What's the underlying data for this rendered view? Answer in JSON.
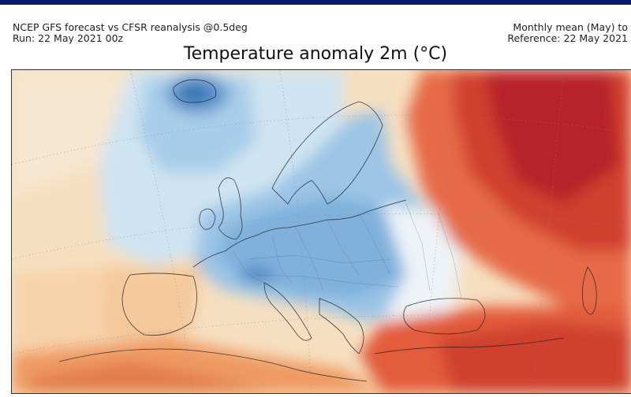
{
  "header": {
    "source_line": "NCEP GFS forecast vs CFSR reanalysis @0.5deg",
    "run_line": "Run: 22 May 2021 00z",
    "mean_line": "Monthly mean (May) to",
    "reference_line": "Reference: 22 May 2021"
  },
  "title": "Temperature anomaly 2m (°C)",
  "map": {
    "region": "Europe",
    "colors": {
      "deep_blue": "#2f6db0",
      "mid_blue": "#7fb1dc",
      "light_blue": "#bfdcef",
      "white": "#f4f7fa",
      "pale_orange": "#f7d9b4",
      "orange": "#f2a36d",
      "red": "#e05a3a",
      "dark_red": "#b8222a"
    }
  }
}
